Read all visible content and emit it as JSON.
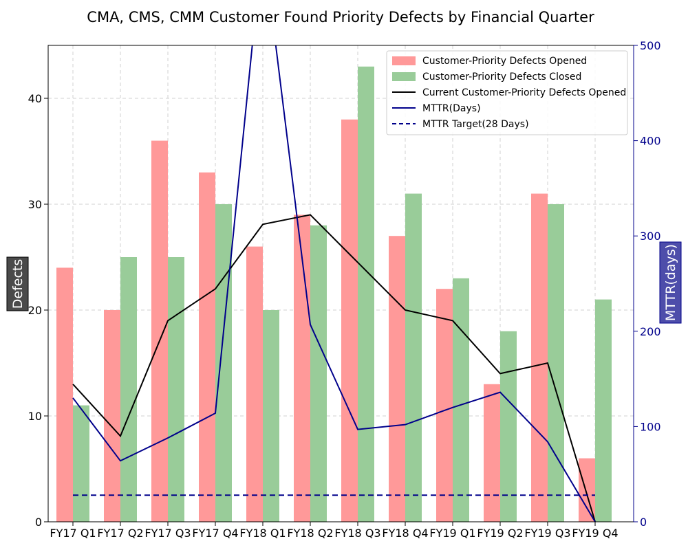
{
  "chart_data": {
    "type": "bar",
    "title": "CMA, CMS, CMM Customer Found Priority Defects by Financial Quarter",
    "categories": [
      "FY17 Q1",
      "FY17 Q2",
      "FY17 Q3",
      "FY17 Q4",
      "FY18 Q1",
      "FY18 Q2",
      "FY18 Q3",
      "FY18 Q4",
      "FY19 Q1",
      "FY19 Q2",
      "FY19 Q3",
      "FY19 Q4"
    ],
    "ylabel": "Defects",
    "y2label": "MTTR(days)",
    "ylim": [
      0,
      45
    ],
    "y2lim": [
      0,
      500
    ],
    "yticks": [
      0,
      10,
      20,
      30,
      40
    ],
    "y2ticks": [
      0,
      100,
      200,
      300,
      400,
      500
    ],
    "grid": true,
    "legend_position": "top-right",
    "series": [
      {
        "name": "Customer-Priority Defects Opened",
        "kind": "bar",
        "axis": "left",
        "color": "#ff9999",
        "values": [
          24,
          20,
          36,
          33,
          26,
          29,
          38,
          27,
          22,
          13,
          31,
          6
        ]
      },
      {
        "name": "Customer-Priority Defects Closed",
        "kind": "bar",
        "axis": "left",
        "color": "#99cc99",
        "values": [
          11,
          25,
          25,
          30,
          20,
          28,
          43,
          31,
          23,
          18,
          30,
          21
        ]
      },
      {
        "name": "Current Customer-Priority Defects Opened",
        "kind": "line",
        "axis": "left",
        "color": "#000000",
        "values": [
          13,
          8.1,
          19,
          22,
          28.1,
          29,
          24.5,
          20,
          19,
          14,
          15,
          0
        ]
      },
      {
        "name": "MTTR(Days)",
        "kind": "line",
        "axis": "right",
        "color": "#00008b",
        "values": [
          130,
          64,
          88,
          114,
          610,
          207,
          97,
          102,
          120,
          136,
          84,
          0
        ]
      },
      {
        "name": "MTTR Target(28 Days)",
        "kind": "dashed-line",
        "axis": "right",
        "color": "#00008b",
        "values": [
          28,
          28,
          28,
          28,
          28,
          28,
          28,
          28,
          28,
          28,
          28,
          28
        ]
      }
    ]
  }
}
